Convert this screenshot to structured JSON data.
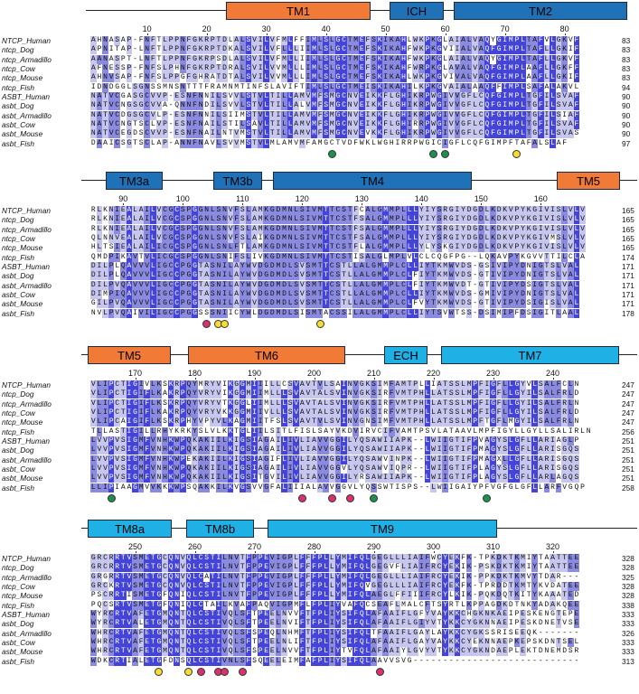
{
  "colors": {
    "tm_orange": "#f07a36",
    "tm_blue": "#1f72b8",
    "tm_lightblue": "#1fb1e6",
    "ident_high": "#4444d8",
    "ident_mid": "#8a8ae0",
    "ident_low": "#c6c6ee",
    "marker_green": "#1e8f4c",
    "marker_yellow": "#f5dd32",
    "marker_pink": "#d8326e"
  },
  "species": [
    "NTCP_Human",
    "ntcp_Dog",
    "ntcp_Armadillo",
    "ntcp_Cow",
    "ntcp_Mouse",
    "ntcp_Fish",
    "ASBT_Human",
    "asbt_Dog",
    "asbt_Armadillo",
    "asbt_Cow",
    "asbt_Mouse",
    "asbt_Fish"
  ],
  "panels": [
    {
      "domains": [
        {
          "label": "TM1",
          "color": "orange"
        },
        {
          "label": "ICH",
          "color": "blue"
        },
        {
          "label": "TM2",
          "color": "blue"
        }
      ],
      "ticks": [
        {
          "label": "10",
          "col": 9
        },
        {
          "label": "20",
          "col": 19
        },
        {
          "label": "30",
          "col": 29
        },
        {
          "label": "40",
          "col": 39
        },
        {
          "label": "50",
          "col": 49
        },
        {
          "label": "60",
          "col": 59
        },
        {
          "label": "70",
          "col": 69
        },
        {
          "label": "80",
          "col": 79
        }
      ],
      "sequences": [
        "AHNASAP-FNFTLPPNFGKRPTDLALSVILVFMLFFIMLSLGCTMEFSKIKAHLWKPKGLAIALVAQYGIMPLTAFVLGKVF",
        "APNITAP-LNFTLPPNFGKRPTDKALSVILVFLLLIIMLSLGCTMEFSKIKAHFWKPKGVIIALVAQFGIMPLTAFLLGKIF",
        "AANASPT-LNFTLPPNFGKRPSDLALSVILVFMLLIIMLSLGCTMEFSKIKAHFWKPKGLAIALVAQYGIMPLTAFLLGKVF",
        "AFNESSP-FNFSLPHNFGKRPTDRALSVILVVMLLLIMLSLGCTMEFSKIKAHFWRPKGLAVALVAQFGIMPLAAFLLGKFF",
        "AHNVSAP-FNFSLPPGFGHRATDTALSVILVVMLLLIMLSLGCTMEFSKIKAHLWKPKGVIVALVAQFGIMPLAAFLLGKIF",
        "IDNDGGLSGNSSMNSNTTTFRAMNMTINFSLAVIFTIMLSLGCTMEISKIKAHILKPKGVAIALAAQFFIMPLSAFALAKVL",
        "NATVCGASGCVVP-ESNFNNILSVVLSTVLTILLAMVMFSMGCNVEIKKFLGHIKRPWGIVVGFLCQFGIMPLTGFILSVAF",
        "NATVCNGSGCVVA-QNNFNDILSVVLSTVLTILLALVMFSMGCNVEIKKFLGHIKRPWGIVVGFLCQFGIMPLTGFILSVAF",
        "NATVCDGSGCVLP-ESNFNNILSIIMSTVLTILLAMVMFSMGCNVEIKKFLGHIKRPWGIVVGFLCQFGIMPLTGFILSIAF",
        "NATVCNGTSCLVP-ESNFNAILSTILSAVLTILLAMVMFSMGCNVEIKKFLGHIRRPWGIVVGFLCQFGIMPLTGFILSVAF",
        "NATVCEGDSCVVP-ESNFNAILNTVMSTVLTILLAMVMFSMGCNVEVKKFLGHIKRPWGIVVGFLCQFGIMPLTGFILSVAS",
        "DAAICSGTSCLAP-ANNFNAVLSVVMSTVLMLAMVMFAMGCTVDFWKLWGHIRRPWGICIGFLCQFGIMPFTAFALSLAF"
      ],
      "end_numbers": [
        "83",
        "83",
        "83",
        "83",
        "83",
        "94",
        "90",
        "90",
        "90",
        "90",
        "90",
        "97"
      ],
      "markers": [
        {
          "col": 40,
          "color": "green"
        },
        {
          "col": 57,
          "color": "green"
        },
        {
          "col": 59,
          "color": "green"
        },
        {
          "col": 71,
          "color": "yellow"
        }
      ]
    },
    {
      "domains": [
        {
          "label": "TM3a",
          "color": "blue"
        },
        {
          "label": "TM3b",
          "color": "blue"
        },
        {
          "label": "TM4",
          "color": "blue"
        },
        {
          "label": "TM5",
          "color": "orange"
        }
      ],
      "ticks": [
        {
          "label": "90",
          "col": 5
        },
        {
          "label": "100",
          "col": 15
        },
        {
          "label": "110",
          "col": 25
        },
        {
          "label": "120",
          "col": 35
        },
        {
          "label": "130",
          "col": 45
        },
        {
          "label": "140",
          "col": 55
        },
        {
          "label": "150",
          "col": 65
        },
        {
          "label": "160",
          "col": 75
        }
      ],
      "sequences": [
        "RLKNIEALAILVCGCSPGGNLSNVFSLAMKGDMNLSIVMTTCSTFCALGMMPLLLYIYSRGIYDGDLKDKVPYKGIVISLVLV",
        "RLKNIEALAILVCGCSPGGNLSNVFSLAMKGDMNLSIVMTTCSTFSALGMMPLLLYIYSRGIYDGDLKDKVPYKGIVISLVLV",
        "RLKNIEALAILVCGCSPGGNLSNVFSLAMKGDMNLSIVMTTCSTFSALGMMPLLLYIYSRGIYDGDLKDKVPYKGIVISLVLV",
        "QLNNVEALAILVCGCSPGGNLSNVFSLAIKGDMNLSIVMTTCSTFSALGMMPLLLYIYSRGIYDGDLKDKVPYKGIVMSLVLV",
        "HLTSIEALAILICGCSPGGNLSNLFTLAMKGDMNLSIVMTTCSTFLALGMMPLLLYLYSKGIYDGDLKDKVPYKGIVISLVLV",
        "QMDPIKAVTVLICGCSPGGNLSNIFSLIVKGDMNLSIVMTTCSTISALGLMPLVLCLCQGFPG--LQKAVPYKGVVTTILCLA",
        "DILPLQAVVVLIGCCPGGTASNILAYWVDGDMDLSVSMTTCSTLLALGMMPLCLLIYTKMWVDS-GSIVIPYDNIGTSLVAL",
        "DILPLQAVVVLIGCCPGGTASNILAYWVDGDMDLSVSMTTCSTLLALGMMPLCLFIYTKMWVDS-GTIVIPYDNIGTSLVAL",
        "DILPVQAVVVLIGCCPGGTASNILAYWVDGDMDLSVSMTTCSTLLALGMMPLCLFIYTKMWVDT-GTIVIPYDSIGTSLVAL",
        "DIMPIQAVVVLIGCCPGGTASNILAYWVDGDMDLSVSMTTCSTLLALGMMPLCLLIYTKMWVDS-GMIVIPYDNIGTSLVAL",
        "GILPVQAVVVLIGCCPGGTASNILAYWVDGDMDLSVSMTTCSTLLALGMMPLCLFVYTKMWVDS-GTIVIPYDSIGISLVAL",
        "NVLPVQAIVILIGCCPGGSSSNIICYWLDGDMDLSISMTACSSILALGMMPLCLLIYTSVWTSS-DSIMIPFDSIGITLAAL"
      ],
      "end_numbers": [
        "165",
        "165",
        "165",
        "165",
        "165",
        "174",
        "171",
        "171",
        "171",
        "171",
        "171",
        "178"
      ],
      "markers": [
        {
          "col": 19,
          "color": "pink"
        },
        {
          "col": 21,
          "color": "yellow"
        },
        {
          "col": 22,
          "color": "yellow"
        },
        {
          "col": 38,
          "color": "yellow"
        }
      ]
    },
    {
      "domains": [
        {
          "label": "TM5",
          "color": "orange"
        },
        {
          "label": "TM6",
          "color": "orange"
        },
        {
          "label": "ECH",
          "color": "lightblue"
        },
        {
          "label": "TM7",
          "color": "lightblue"
        }
      ],
      "ticks": [
        {
          "label": "170",
          "col": 7
        },
        {
          "label": "180",
          "col": 17
        },
        {
          "label": "190",
          "col": 27
        },
        {
          "label": "200",
          "col": 37
        },
        {
          "label": "210",
          "col": 47
        },
        {
          "label": "220",
          "col": 57
        },
        {
          "label": "230",
          "col": 67
        },
        {
          "label": "240",
          "col": 77
        }
      ],
      "sequences": [
        "VLIPCTIGIVLKSKRPQYMRYVIKGGMIIILLCSVAVTVLSAINVGKSIMFAMTPLLIATSSLMPFIGFLLGYVLSALFCLN",
        "VLIPCTIGIFLKAKRPQYVRYVIKGGMIIMLLLSVAVTALSVINVGKSIRFVMTPHLLATSSLMPFIGFLLGYILSALFRLD",
        "VLIPCTIGIFLKSKRPQYVRYVTKGGLIIMLLLSVAVTALSVINVGKSIRFVMTPHLLATSSLMPFIGFLLGYILSALFRLN",
        "VLIPCTIGIFLKAKRPQYVRYVKKGGMIIVLLLSVAVTALSVINVGKSIRFVMTPHLLATSSLMPFIGFLLGYILSALFRLD",
        "VLIPCAIGIFLKSKRPHYVPYVLKAGMIITFSLSVAVTVLSVINVGNSIMFVMTPHLLATSSLMPFTGFLMGYILSALFRLN",
        "TLLASTIGILLRHYKRKYSLVLKKTGLIILSITLFISLSAYVKDVIRVCIFVAMTPSVLATAAVLMPFIGYLLGYLLSALIRLN",
        "LVVPVSIGMFVNHKWPQKAKIILKIGSIAGAILIVLIAVVGGILYQSAWIIAPK--LWIIGTIFPVAGYSLGFLLARIAGLP",
        "LVVPVSIGMFVNHKWPQKAKIILKIGSIAGAILIVLIAVVGGILYQSAWIIAPK--LWIIGTIFPMAGYSLGFLLARISGQS",
        "LVVPVSIGMFVNHKWPEKAKIILKIGSIAGIFLIVLIAVVGGILYQSAWVINPK--LWIIGTIFPMAGXLLGFLLARISGQS",
        "LVVPVSIGMFVNHKWPQKAKIILKIGSIAGAILIVLIAVVGGVLYQSAWVIQPR--LWIIGTIFPLAGYSLGFLLARISGQS",
        "LVVPVSIGMFVNHKWPQKAKIILKIGSITGVILIVLIAVVGGILYRSAWIIAPK--LWIIGTIFPLAGYSLGFLLARLAGQS",
        "LLIPIAAGMVVKKKWPSQAKKILKVGSVVGFALIIIALAVVGGVLYQSSWTISPS--LWIIGAIYPFVGFGLGFLLARFVGQP"
      ],
      "end_numbers": [
        "247",
        "247",
        "247",
        "247",
        "247",
        "256",
        "251",
        "251",
        "251",
        "251",
        "251",
        "258"
      ],
      "markers": [
        {
          "col": 3,
          "color": "green"
        },
        {
          "col": 35,
          "color": "pink"
        },
        {
          "col": 40,
          "color": "pink"
        },
        {
          "col": 43,
          "color": "pink"
        },
        {
          "col": 47,
          "color": "green"
        },
        {
          "col": 66,
          "color": "green"
        }
      ]
    },
    {
      "domains": [
        {
          "label": "TM8a",
          "color": "lightblue"
        },
        {
          "label": "TM8b",
          "color": "lightblue"
        },
        {
          "label": "TM9",
          "color": "lightblue"
        }
      ],
      "ticks": [
        {
          "label": "250",
          "col": 7
        },
        {
          "label": "260",
          "col": 17
        },
        {
          "label": "270",
          "col": 27
        },
        {
          "label": "280",
          "col": 37
        },
        {
          "label": "290",
          "col": 47
        },
        {
          "label": "300",
          "col": 57
        },
        {
          "label": "310",
          "col": 67
        },
        {
          "label": "320",
          "col": 77
        }
      ],
      "sequences": [
        "GRCRRTVSMETGCQNVQLCSTILNVTFPPEVIGPLFFFPLLYMIFQLGEGLLLIAIFWCYEKFK-TPKDKTKMIYTAATTEE",
        "GRCRRTVSMETGCQNVQLCSTILNVTFPPEVIGPLFFFPLLYMIFQLGEGVFLIAIFRCYEKIK-PSKDKTKMIYTAATTEE",
        "GRGRRTVSMETGCQNVQLCATILNVTFPPEVIGPLFFFPLLYMIFQLGEGLLLIAIFRCYEKIK-PPKDKTKMVYTDAR---",
        "GRCKRTVSMETGCQNVQLCSTILNVTFPPEVIGPLFFFPLLYMIFQVGEGLLLIAIFRCYEKFK-TPRDDTKMTYKVDATEE",
        "PSCRRTISMETGFQNIQLCSTILNVTFPPEVIGPLFFFPLLYMIFQLAEGLFFIIIFRCYLKIK-PQKDQTKITYKAAATED",
        "PQCSRTVSMETGFQNIQLCTAILKVAFPAQVIGPMFLFPLIYVAFQCSEAFLMALCFTSYRTLKPPAGDKDTNKYADAKQEE",
        "WYRCRTVAFETGMQNTQLCSTIVQLSFTPEELNVVFTFPLIYSIFQLAFAAIFLGFYVAYKKCHGKNKAEIPESKENGTEPE",
        "WYRCRTVALETGMQNTQLCSTIVQLSFTPEELNVIFTFPLIYSIFQLAFAAIFLGIYVTYKKCYGKNNAEIPESKDNETVSE",
        "WHRCRTVAFETGMQNTQLCSTIVQLSFSPEQLNHMFTFPLIYSIFQLTFAAIFLGAYLAYKKCYGKSSRISEEQK-------",
        "WHRCRTVAFETGMQNTQLCSTIVQLSFTPEELNLIFTFPLIYSIFQLAFAAIFLGAYVAYKKCYEKNNAEPKEPSKDNTSEL",
        "WHRCRTVAFETGMQNTQLCSTIVQLSFSPEELNVVFTFPLIYTVFQLAFAAIYLGVYVTYKKCYGKNDAEPLEKTDNEMDSR",
        "WDKCRTIALETGFDNSQLCSTIVNLSFSQEELEIMFAFPLIYSIFQLAAVVSVG----------------------------"
      ],
      "end_numbers": [
        "328",
        "328",
        "325",
        "328",
        "328",
        "338",
        "333",
        "333",
        "326",
        "333",
        "333",
        "313"
      ],
      "markers": [
        {
          "col": 11,
          "color": "yellow"
        },
        {
          "col": 16,
          "color": "yellow"
        },
        {
          "col": 18,
          "color": "pink"
        },
        {
          "col": 21,
          "color": "pink"
        },
        {
          "col": 22,
          "color": "pink"
        },
        {
          "col": 25,
          "color": "pink"
        },
        {
          "col": 48,
          "color": "pink"
        }
      ]
    }
  ]
}
